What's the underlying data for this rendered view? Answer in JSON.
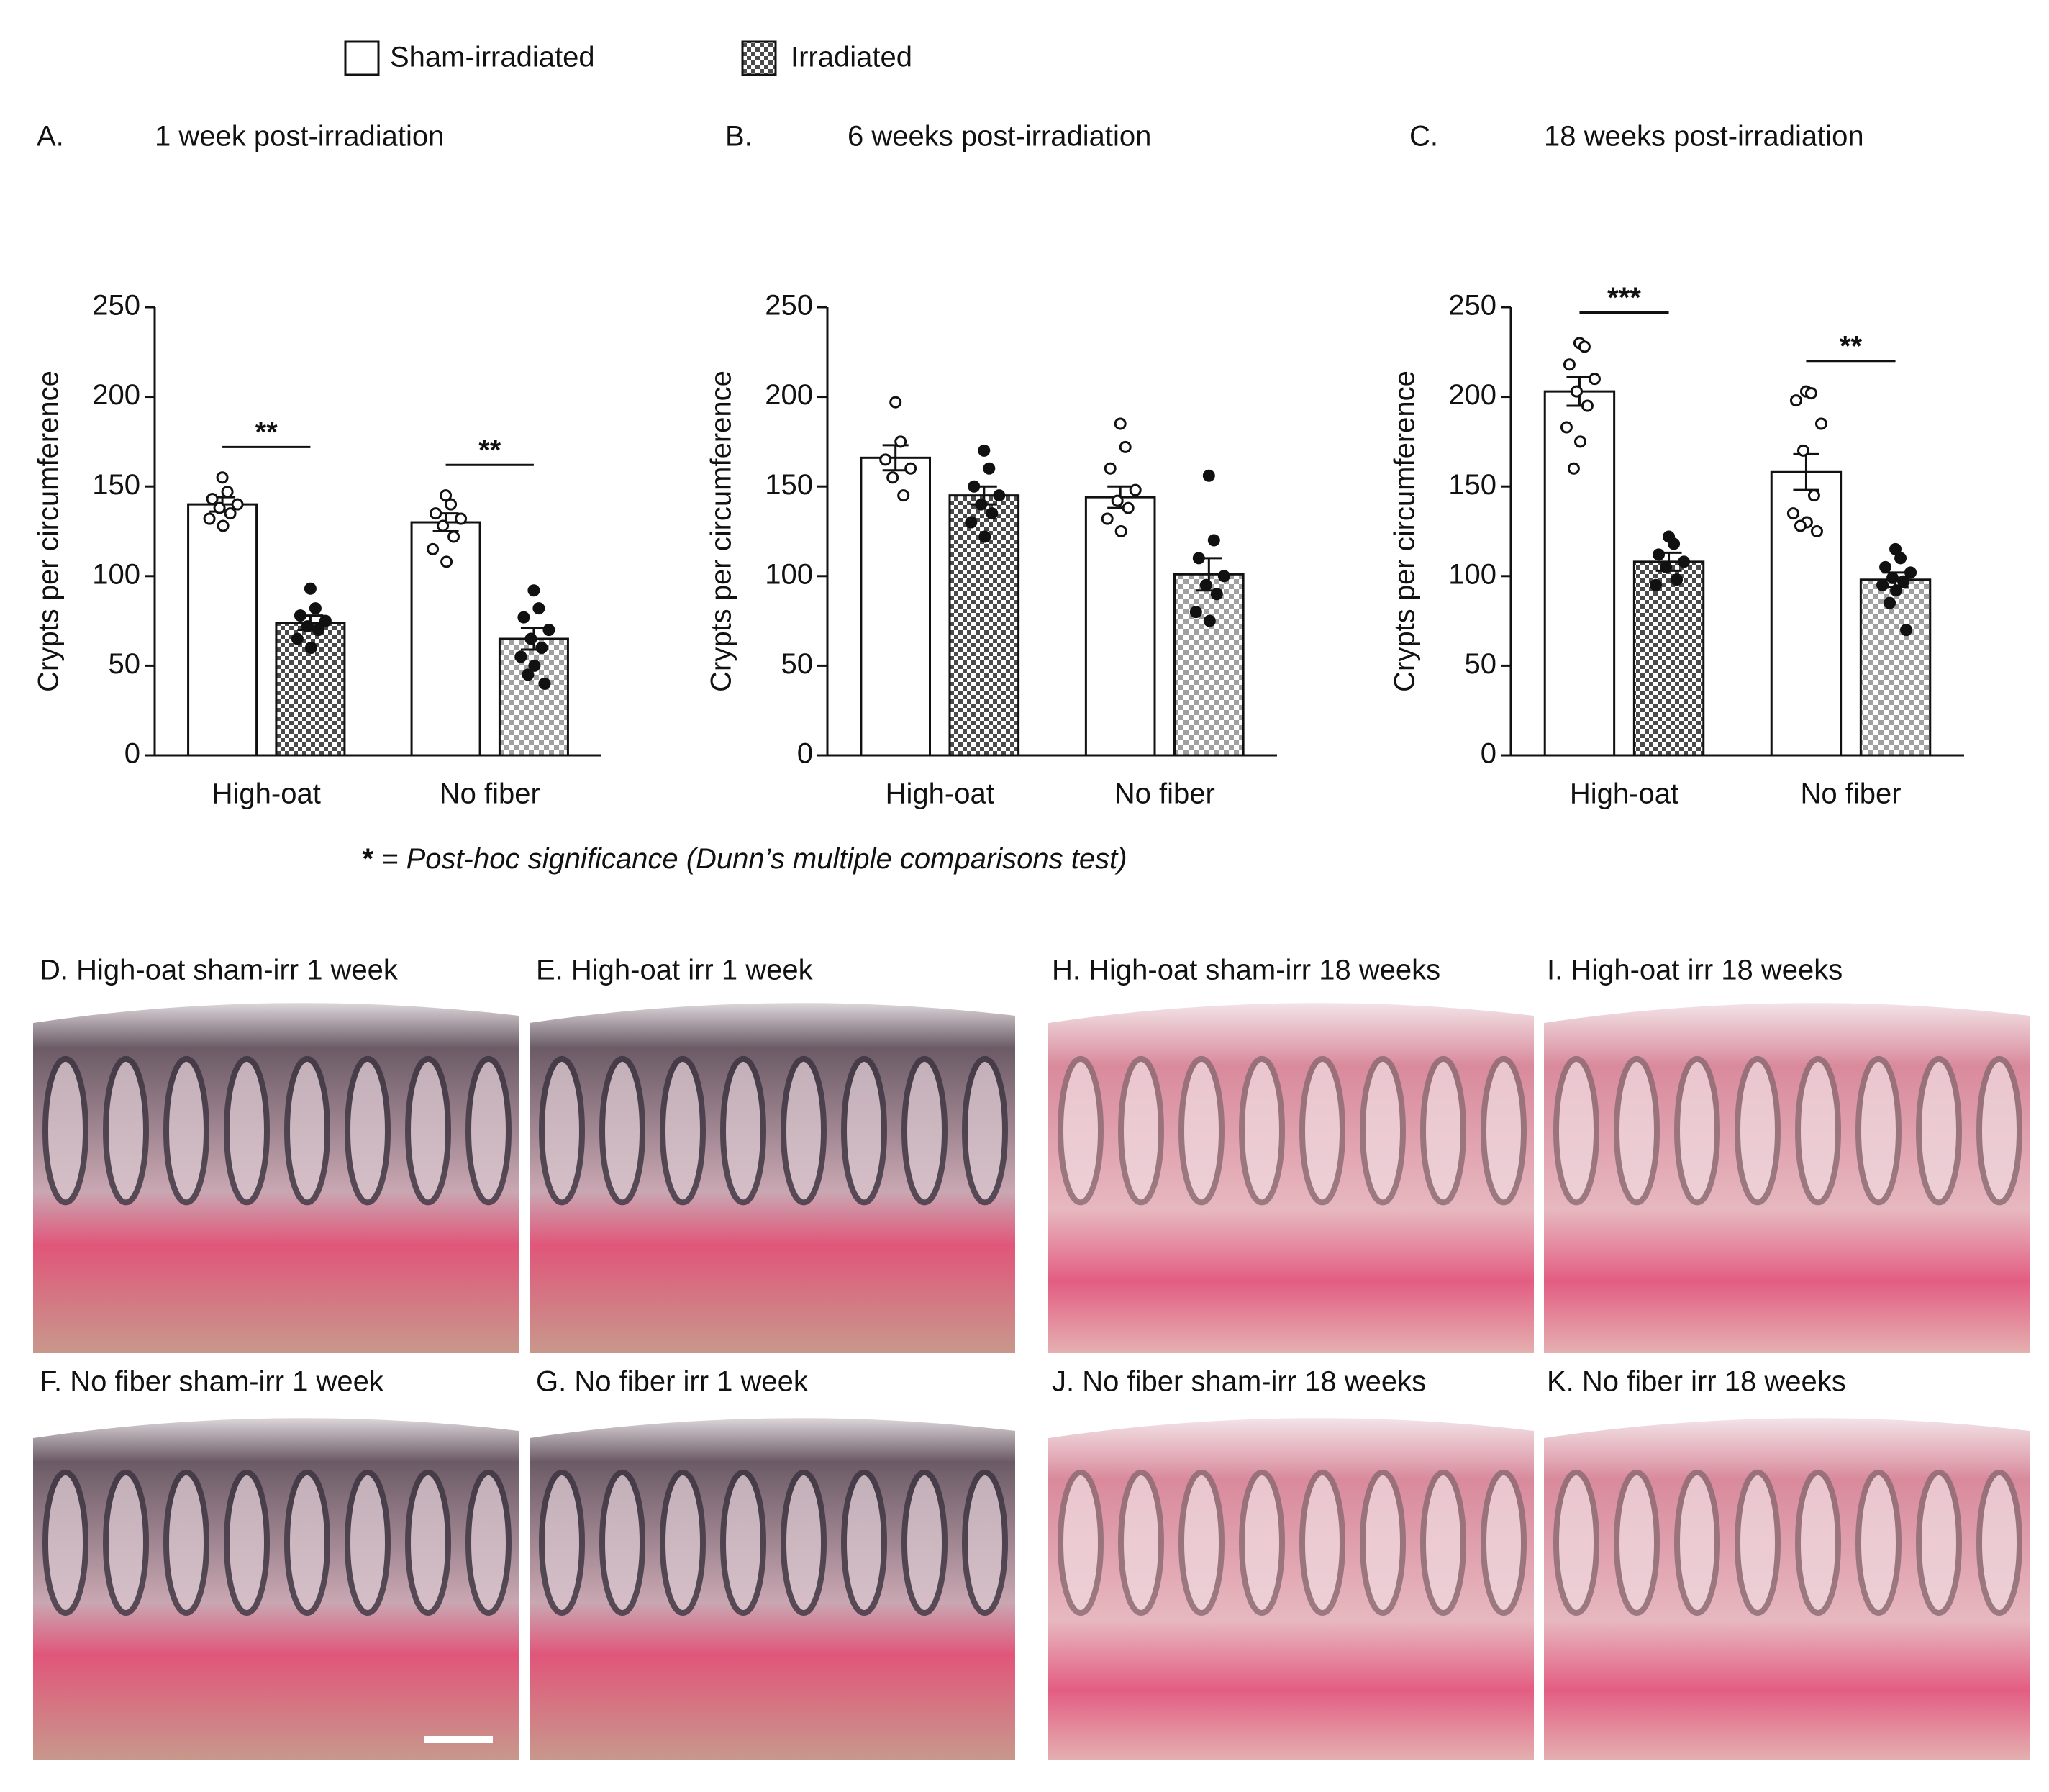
{
  "legend_title": null,
  "footnote": {
    "symbol": "*",
    "text": "= Post-hoc significance (Dunn’s multiple comparisons test)"
  },
  "chart_data": [
    {
      "type": "bar",
      "panel": "A.",
      "title": "1 week post-irradiation",
      "y_label": "Crypts per circumference",
      "categories": [
        "High-oat",
        "No fiber"
      ],
      "series": [
        {
          "name": "Sham-irradiated",
          "color": "#ffffff",
          "values": [
            140,
            130
          ],
          "errors": [
            4,
            5
          ],
          "points": [
            [
              155,
              147,
              143,
              140,
              138,
              135,
              132,
              128
            ],
            [
              145,
              140,
              135,
              132,
              128,
              122,
              115,
              108
            ]
          ]
        },
        {
          "name": "Irradiated",
          "pattern": "checker",
          "colors": [
            "#4a4a4a",
            "#a0a0a0"
          ],
          "values": [
            74,
            65
          ],
          "errors": [
            4,
            6
          ],
          "points": [
            [
              93,
              82,
              78,
              75,
              72,
              70,
              65,
              60
            ],
            [
              92,
              82,
              77,
              70,
              65,
              60,
              55,
              50,
              45,
              40
            ]
          ]
        }
      ],
      "significance": [
        "**",
        "**"
      ],
      "ylim": [
        0,
        250
      ],
      "yticks": [
        0,
        50,
        100,
        150,
        200,
        250
      ]
    },
    {
      "type": "bar",
      "panel": "B.",
      "title": "6 weeks post-irradiation",
      "y_label": "Crypts per circumference",
      "categories": [
        "High-oat",
        "No fiber"
      ],
      "series": [
        {
          "color": "#ffffff",
          "values": [
            166,
            144
          ],
          "errors": [
            7,
            6
          ],
          "points": [
            [
              197,
              175,
              165,
              160,
              155,
              145
            ],
            [
              185,
              172,
              160,
              148,
              142,
              138,
              132,
              125
            ]
          ]
        },
        {
          "pattern": "checker",
          "colors": [
            "#4a4a4a",
            "#a0a0a0"
          ],
          "values": [
            145,
            101
          ],
          "errors": [
            5,
            9
          ],
          "points": [
            [
              170,
              160,
              150,
              145,
              140,
              135,
              130,
              122
            ],
            [
              156,
              120,
              110,
              100,
              95,
              90,
              80,
              75
            ]
          ]
        }
      ],
      "significance": [
        null,
        null
      ],
      "ylim": [
        0,
        250
      ],
      "yticks": [
        0,
        50,
        100,
        150,
        200,
        250
      ]
    },
    {
      "type": "bar",
      "panel": "C.",
      "title": "18 weeks post-irradiation",
      "y_label": "Crypts per circumference",
      "categories": [
        "High-oat",
        "No fiber"
      ],
      "series": [
        {
          "color": "#ffffff",
          "values": [
            203,
            158
          ],
          "errors": [
            8,
            10
          ],
          "points": [
            [
              230,
              228,
              218,
              210,
              203,
              195,
              183,
              175,
              160
            ],
            [
              203,
              202,
              198,
              185,
              170,
              145,
              135,
              130,
              128,
              125
            ]
          ]
        },
        {
          "pattern": "checker",
          "colors": [
            "#4a4a4a",
            "#a0a0a0"
          ],
          "values": [
            108,
            98
          ],
          "errors": [
            5,
            4
          ],
          "points": [
            [
              122,
              118,
              112,
              108,
              105,
              98,
              95
            ],
            [
              115,
              110,
              105,
              102,
              99,
              97,
              95,
              92,
              85,
              70
            ]
          ]
        }
      ],
      "significance": [
        "***",
        "**"
      ],
      "ylim": [
        0,
        250
      ],
      "yticks": [
        0,
        50,
        100,
        150,
        200,
        250
      ]
    }
  ],
  "micrographs": [
    "D. High-oat sham-irr 1 week",
    "E. High-oat irr 1 week",
    "H. High-oat sham-irr 18 weeks",
    "I. High-oat irr 18 weeks",
    "F. No fiber sham-irr 1 week",
    "G. No fiber irr 1 week",
    "J. No fiber sham-irr 18 weeks",
    "K. No fiber irr 18 weeks"
  ]
}
